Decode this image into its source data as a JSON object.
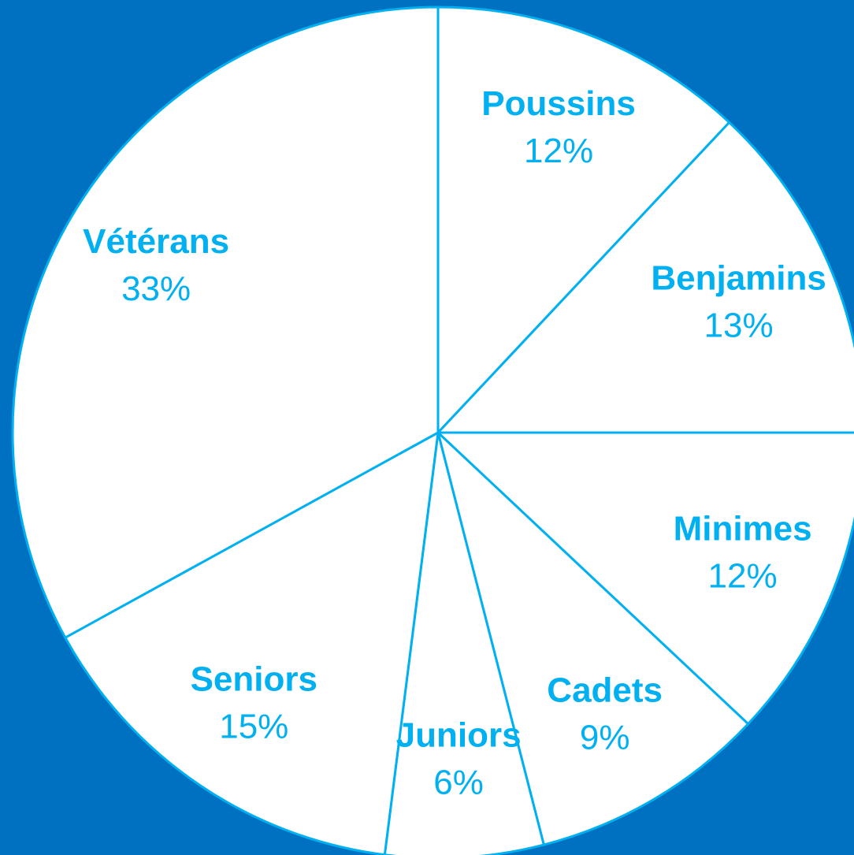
{
  "chart_data": {
    "type": "pie",
    "categories": [
      "Poussins",
      "Benjamins",
      "Minimes",
      "Cadets",
      "Juniors",
      "Seniors",
      "Vétérans"
    ],
    "values": [
      12,
      13,
      12,
      9,
      6,
      15,
      33
    ],
    "value_labels": [
      "12%",
      "13%",
      "12%",
      "9%",
      "6%",
      "15%",
      "33%"
    ],
    "color": "#ffffff",
    "edge_color": "#00b0f0"
  }
}
